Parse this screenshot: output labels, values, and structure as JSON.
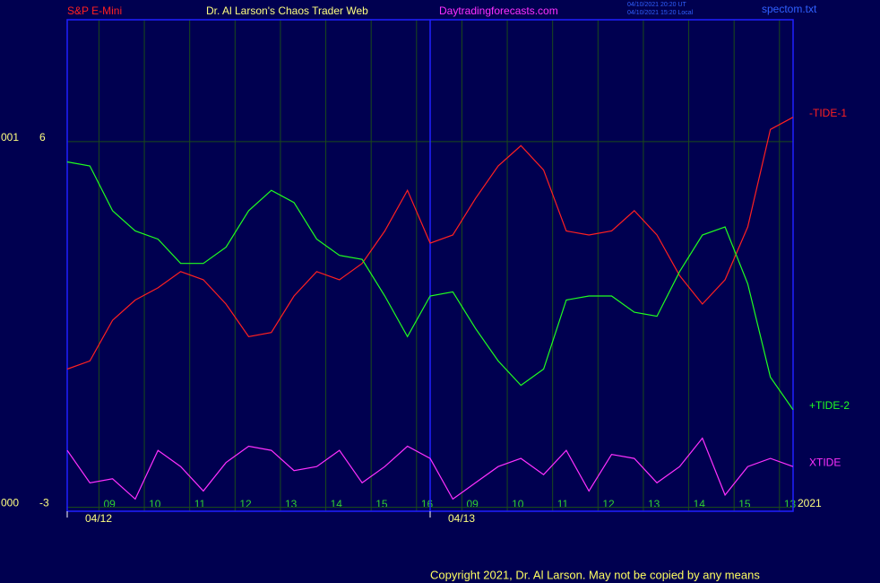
{
  "chart_data": {
    "type": "line",
    "header": {
      "instrument": "S&P E-Mini",
      "site": "Dr. Al Larson's Chaos Trader Web",
      "url": "Daytradingforecasts.com",
      "stamp_ut": "04/10/2021 20:20 UT",
      "stamp_local": "04/10/2021 15:20 Local",
      "file": "spectom.txt"
    },
    "year": "2021",
    "copyright": "Copyright 2021, Dr. Al Larson. May not be copied by any means",
    "x": [
      0,
      0.5,
      1,
      1.5,
      2,
      2.5,
      3,
      3.5,
      4,
      4.5,
      5,
      5.5,
      6,
      6.5,
      7,
      7.5,
      8,
      8.5,
      9,
      9.5,
      10,
      10.5,
      11,
      11.5,
      12,
      12.5,
      13,
      13.5,
      14,
      14.5,
      15,
      15.5,
      16
    ],
    "xlim": [
      0,
      16
    ],
    "xticks": [
      {
        "value": 0.7,
        "label": "09"
      },
      {
        "value": 1.7,
        "label": "10"
      },
      {
        "value": 2.7,
        "label": "11"
      },
      {
        "value": 3.7,
        "label": "12"
      },
      {
        "value": 4.7,
        "label": "13"
      },
      {
        "value": 5.7,
        "label": "14"
      },
      {
        "value": 6.7,
        "label": "15"
      },
      {
        "value": 7.7,
        "label": "16"
      },
      {
        "value": 8.7,
        "label": "09"
      },
      {
        "value": 9.7,
        "label": "10"
      },
      {
        "value": 10.7,
        "label": "11"
      },
      {
        "value": 11.7,
        "label": "12"
      },
      {
        "value": 12.7,
        "label": "13"
      },
      {
        "value": 13.7,
        "label": "14"
      },
      {
        "value": 14.7,
        "label": "15"
      },
      {
        "value": 15.7,
        "label": "13"
      }
    ],
    "date_ticks": [
      {
        "value": 0,
        "label": "04/12"
      },
      {
        "value": 8,
        "label": "04/13"
      }
    ],
    "ylim": [
      -3.1,
      9
    ],
    "yticks": [
      6,
      -3
    ],
    "y_prefix_labels": [
      "001",
      "000"
    ],
    "grid": true,
    "series": [
      {
        "name": "-TIDE-1",
        "color": "#ff2020",
        "values": [
          0.4,
          0.6,
          1.6,
          2.1,
          2.4,
          2.8,
          2.6,
          2.0,
          1.2,
          1.3,
          2.2,
          2.8,
          2.6,
          3.0,
          3.8,
          4.8,
          3.5,
          3.7,
          4.6,
          5.4,
          5.9,
          5.3,
          3.8,
          3.7,
          3.8,
          4.3,
          3.7,
          2.7,
          2.0,
          2.6,
          3.9,
          6.3,
          6.6
        ]
      },
      {
        "name": "+TIDE-2",
        "color": "#20ff20",
        "values": [
          5.5,
          5.4,
          4.3,
          3.8,
          3.6,
          3.0,
          3.0,
          3.4,
          4.3,
          4.8,
          4.5,
          3.6,
          3.2,
          3.1,
          2.2,
          1.2,
          2.2,
          2.3,
          1.4,
          0.6,
          0.0,
          0.4,
          2.1,
          2.2,
          2.2,
          1.8,
          1.7,
          2.8,
          3.7,
          3.9,
          2.5,
          0.2,
          -0.6
        ]
      },
      {
        "name": "XTIDE",
        "color": "#ff30ff",
        "values": [
          -1.6,
          -2.4,
          -2.3,
          -2.8,
          -1.6,
          -2.0,
          -2.6,
          -1.9,
          -1.5,
          -1.6,
          -2.1,
          -2.0,
          -1.6,
          -2.4,
          -2.0,
          -1.5,
          -1.8,
          -2.8,
          -2.4,
          -2.0,
          -1.8,
          -2.2,
          -1.6,
          -2.6,
          -1.7,
          -1.8,
          -2.4,
          -2.0,
          -1.3,
          -2.7,
          -2.0,
          -1.8,
          -2.0
        ]
      }
    ]
  }
}
